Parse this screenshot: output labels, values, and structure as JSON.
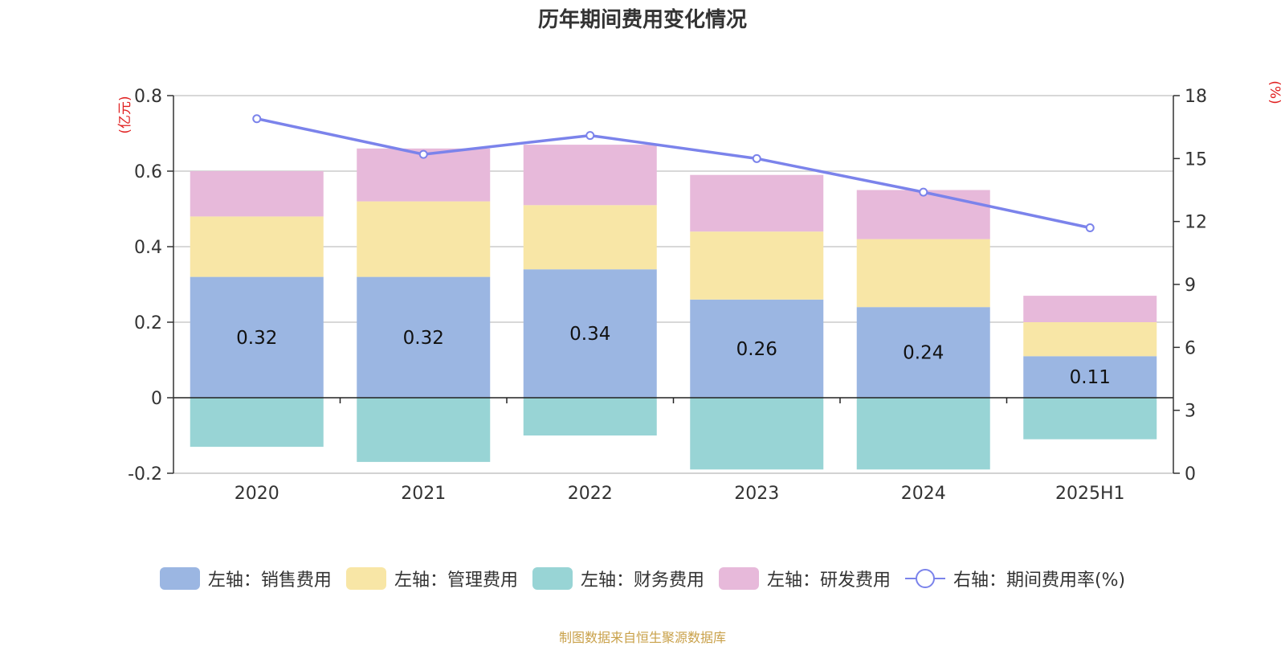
{
  "chart_data": {
    "type": "bar",
    "title": "历年期间费用变化情况",
    "categories": [
      "2020",
      "2021",
      "2022",
      "2023",
      "2024",
      "2025H1"
    ],
    "y_left": {
      "unit_label": "(亿元)",
      "ticks": [
        "0.8",
        "0.6",
        "0.4",
        "0.2",
        "0",
        "-0.2"
      ],
      "range": [
        -0.2,
        0.8
      ]
    },
    "y_right": {
      "unit_label": "(%)",
      "ticks": [
        "18",
        "15",
        "12",
        "9",
        "6",
        "3",
        "0"
      ],
      "range": [
        0,
        18
      ]
    },
    "series": [
      {
        "name": "左轴：销售费用",
        "type": "bar",
        "color": "#9bb6e2",
        "values": [
          0.32,
          0.32,
          0.34,
          0.26,
          0.24,
          0.11
        ],
        "labels": [
          "0.32",
          "0.32",
          "0.34",
          "0.26",
          "0.24",
          "0.11"
        ]
      },
      {
        "name": "左轴：管理费用",
        "type": "bar",
        "color": "#f8e6a6",
        "values": [
          0.16,
          0.2,
          0.17,
          0.18,
          0.18,
          0.09
        ]
      },
      {
        "name": "左轴：财务费用",
        "type": "bar",
        "color": "#98d4d5",
        "values": [
          -0.13,
          -0.17,
          -0.1,
          -0.19,
          -0.19,
          -0.11
        ]
      },
      {
        "name": "左轴：研发费用",
        "type": "bar",
        "color": "#e7b9da",
        "values": [
          0.12,
          0.14,
          0.16,
          0.15,
          0.13,
          0.07
        ]
      },
      {
        "name": "右轴：期间费用率(%)",
        "type": "line",
        "color": "#7b83eb",
        "values": [
          16.9,
          15.2,
          16.1,
          15.0,
          13.4,
          11.7
        ]
      }
    ],
    "grid": true,
    "legend": "bottom"
  },
  "legend_items": [
    {
      "label": "左轴：销售费用",
      "color": "#9bb6e2"
    },
    {
      "label": "左轴：管理费用",
      "color": "#f8e6a6"
    },
    {
      "label": "左轴：财务费用",
      "color": "#98d4d5"
    },
    {
      "label": "左轴：研发费用",
      "color": "#e7b9da"
    },
    {
      "label": "右轴：期间费用率(%)",
      "color": "#7b83eb"
    }
  ],
  "source": "制图数据来自恒生聚源数据库"
}
